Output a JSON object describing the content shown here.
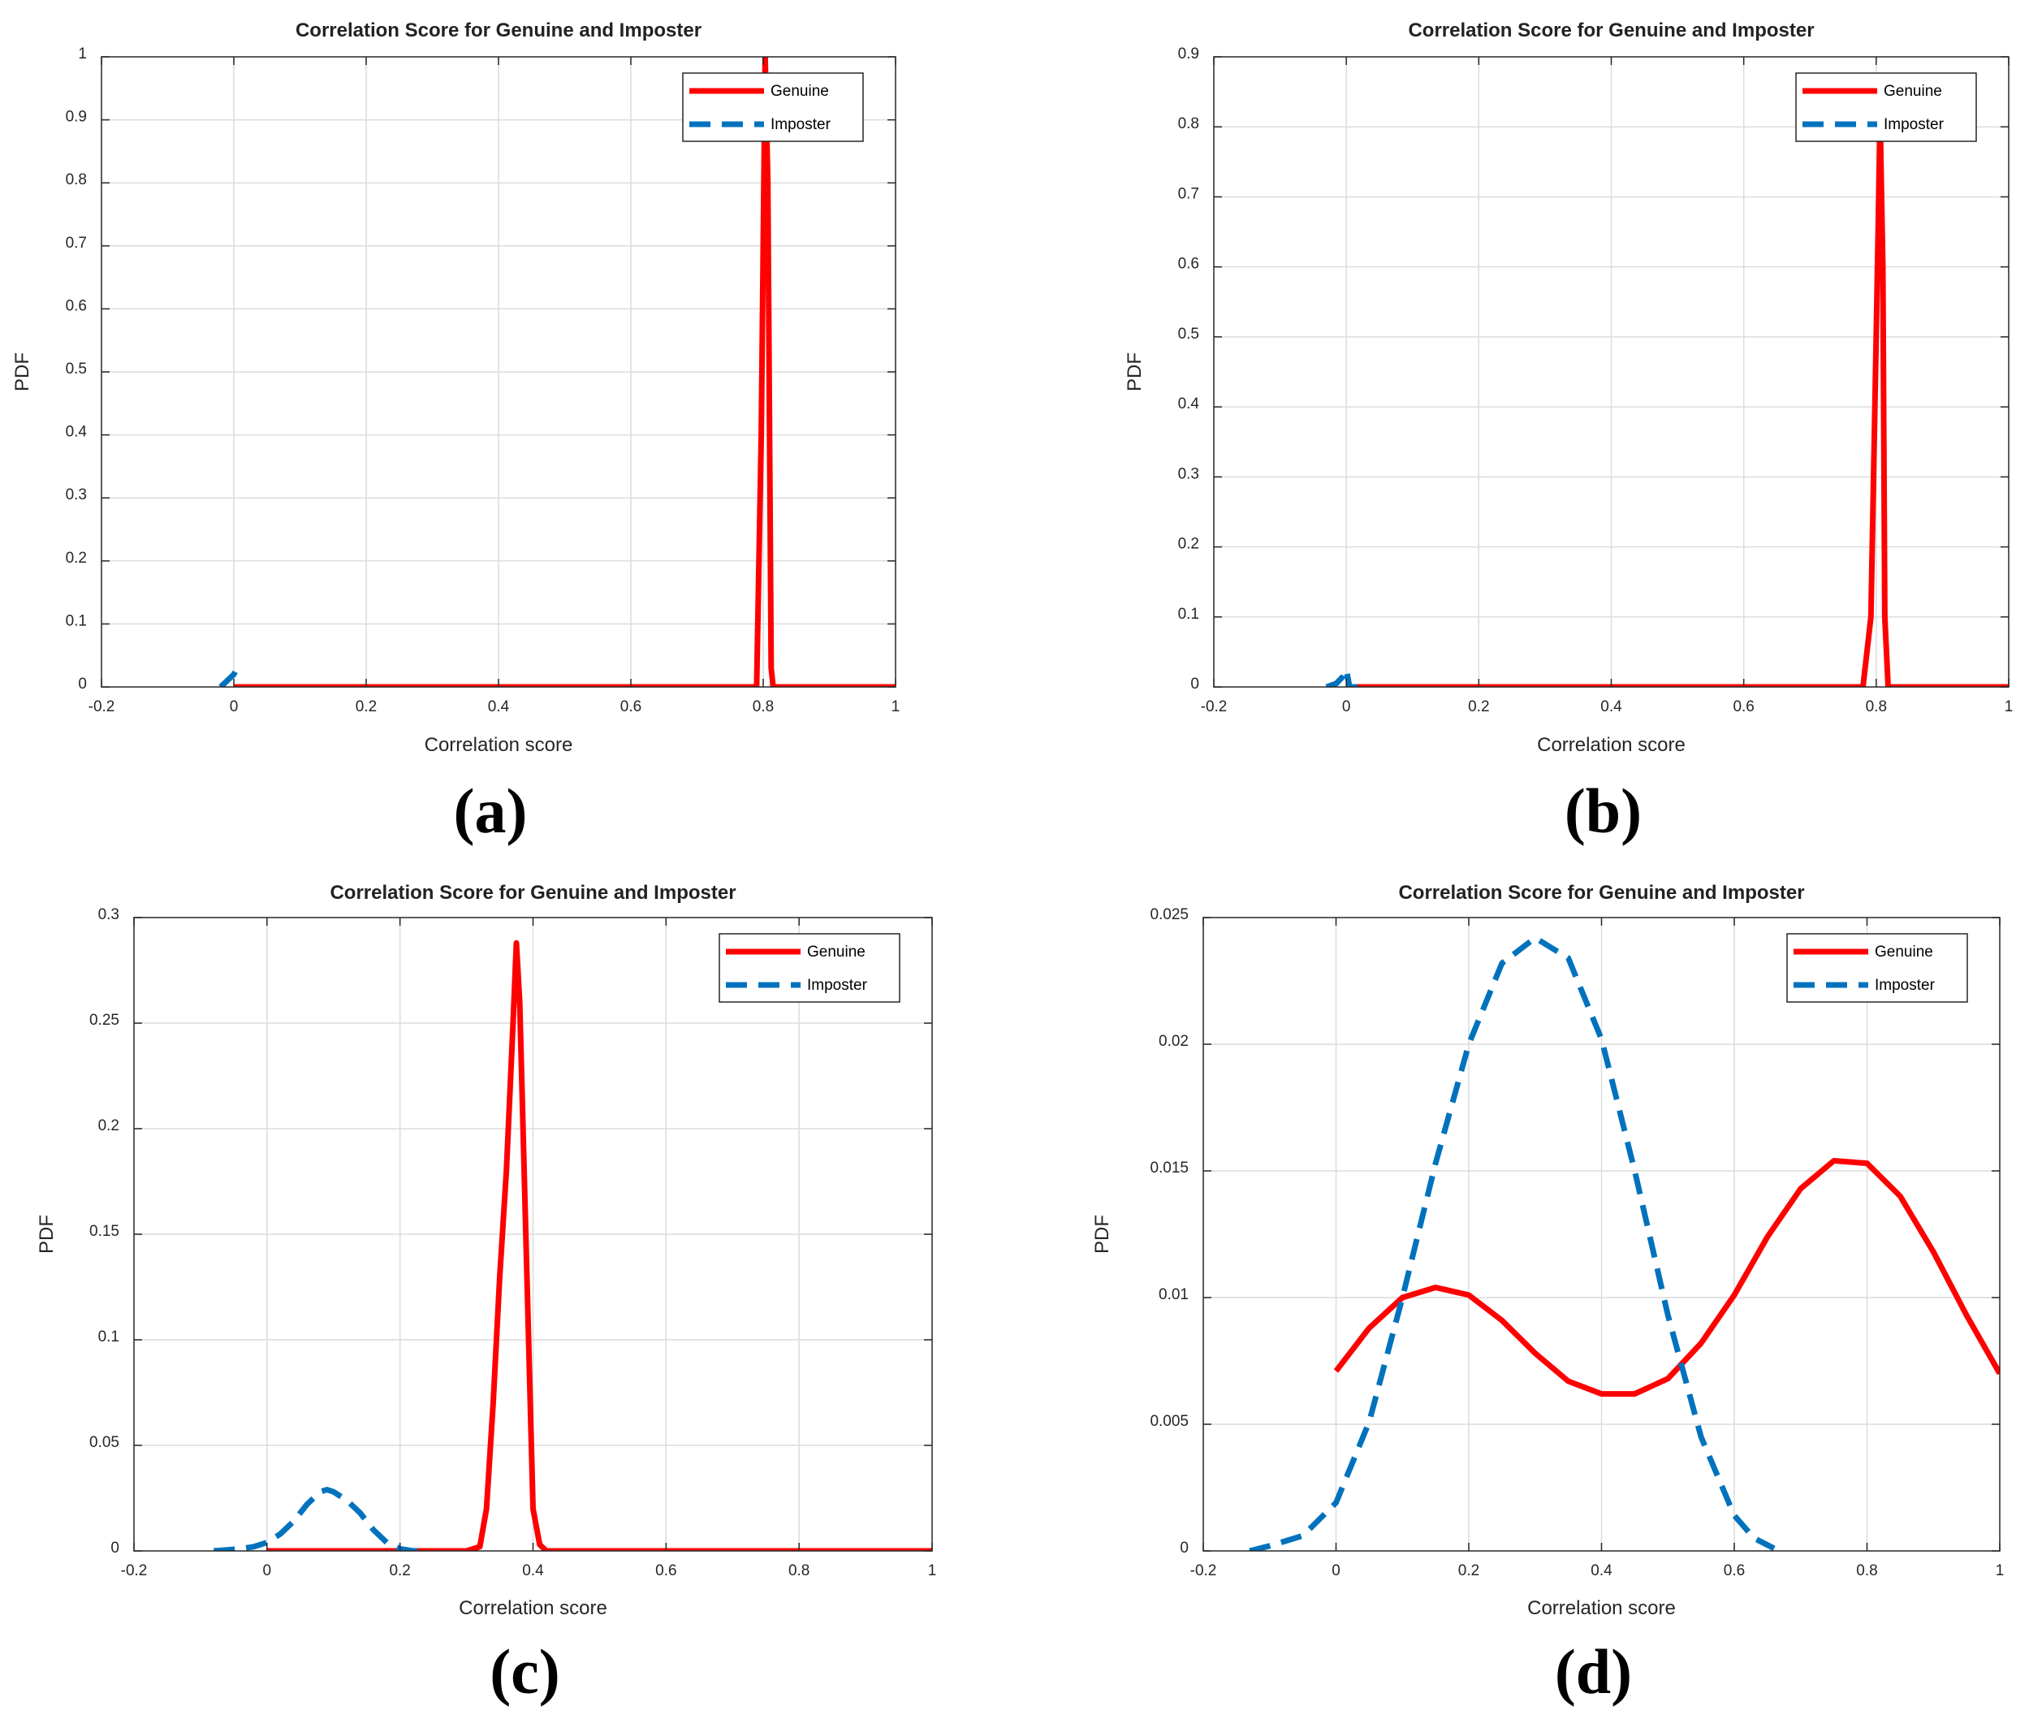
{
  "colors": {
    "genuine": "#ff0000",
    "imposter": "#0072bd"
  },
  "chart_data": [
    {
      "type": "line",
      "panel_label": "(a)",
      "title": "Correlation Score for Genuine and Imposter",
      "xlabel": "Correlation score",
      "ylabel": "PDF",
      "xlim": [
        -0.2,
        1
      ],
      "ylim": [
        0,
        1
      ],
      "xticks": [
        -0.2,
        0,
        0.2,
        0.4,
        0.6,
        0.8,
        1
      ],
      "xtick_labels": [
        "-0.2",
        "0",
        "0.2",
        "0.4",
        "0.6",
        "0.8",
        "1"
      ],
      "yticks": [
        0,
        0.1,
        0.2,
        0.3,
        0.4,
        0.5,
        0.6,
        0.7,
        0.8,
        0.9,
        1
      ],
      "ytick_labels": [
        "0",
        "0.1",
        "0.2",
        "0.3",
        "0.4",
        "0.5",
        "0.6",
        "0.7",
        "0.8",
        "0.9",
        "1"
      ],
      "grid": true,
      "legend_position": "top-right",
      "series": [
        {
          "name": "Genuine",
          "style": "solid",
          "x": [
            0.0,
            0.2,
            0.4,
            0.6,
            0.79,
            0.797,
            0.803,
            0.807,
            0.81,
            0.812,
            0.815,
            1.0
          ],
          "y": [
            0,
            0,
            0,
            0,
            0,
            0.4,
            1.0,
            0.8,
            0.35,
            0.03,
            0,
            0
          ]
        },
        {
          "name": "Imposter",
          "style": "dashed",
          "x": [
            -0.02,
            -0.01,
            0.0,
            0.005
          ],
          "y": [
            0,
            0.01,
            0.02,
            0.03
          ]
        }
      ]
    },
    {
      "type": "line",
      "panel_label": "(b)",
      "title": "Correlation Score for Genuine and Imposter",
      "xlabel": "Correlation score",
      "ylabel": "PDF",
      "xlim": [
        -0.2,
        1
      ],
      "ylim": [
        0,
        0.9
      ],
      "xticks": [
        -0.2,
        0,
        0.2,
        0.4,
        0.6,
        0.8,
        1
      ],
      "xtick_labels": [
        "-0.2",
        "0",
        "0.2",
        "0.4",
        "0.6",
        "0.8",
        "1"
      ],
      "yticks": [
        0,
        0.1,
        0.2,
        0.3,
        0.4,
        0.5,
        0.6,
        0.7,
        0.8,
        0.9
      ],
      "ytick_labels": [
        "0",
        "0.1",
        "0.2",
        "0.3",
        "0.4",
        "0.5",
        "0.6",
        "0.7",
        "0.8",
        "0.9"
      ],
      "grid": true,
      "legend_position": "top-right",
      "series": [
        {
          "name": "Genuine",
          "style": "solid",
          "x": [
            0.0,
            0.2,
            0.4,
            0.6,
            0.78,
            0.792,
            0.8,
            0.806,
            0.81,
            0.813,
            0.818,
            1.0
          ],
          "y": [
            0,
            0,
            0,
            0,
            0,
            0.1,
            0.5,
            0.81,
            0.6,
            0.1,
            0,
            0
          ]
        },
        {
          "name": "Imposter",
          "style": "dashed",
          "x": [
            -0.03,
            -0.015,
            -0.005,
            0.0,
            0.005,
            0.03
          ],
          "y": [
            0,
            0.005,
            0.015,
            0.025,
            0,
            0
          ]
        }
      ]
    },
    {
      "type": "line",
      "panel_label": "(c)",
      "title": "Correlation Score for Genuine and Imposter",
      "xlabel": "Correlation score",
      "ylabel": "PDF",
      "xlim": [
        -0.2,
        1
      ],
      "ylim": [
        0,
        0.3
      ],
      "xticks": [
        -0.2,
        0,
        0.2,
        0.4,
        0.6,
        0.8,
        1
      ],
      "xtick_labels": [
        "-0.2",
        "0",
        "0.2",
        "0.4",
        "0.6",
        "0.8",
        "1"
      ],
      "yticks": [
        0,
        0.05,
        0.1,
        0.15,
        0.2,
        0.25,
        0.3
      ],
      "ytick_labels": [
        "0",
        "0.05",
        "0.1",
        "0.15",
        "0.2",
        "0.25",
        "0.3"
      ],
      "grid": true,
      "legend_position": "top-right",
      "series": [
        {
          "name": "Genuine",
          "style": "solid",
          "x": [
            0.0,
            0.1,
            0.2,
            0.3,
            0.32,
            0.33,
            0.34,
            0.35,
            0.36,
            0.37,
            0.375,
            0.38,
            0.39,
            0.4,
            0.41,
            0.42,
            0.6,
            0.8,
            1.0
          ],
          "y": [
            0,
            0,
            0,
            0,
            0.002,
            0.02,
            0.07,
            0.13,
            0.18,
            0.25,
            0.288,
            0.26,
            0.14,
            0.02,
            0.003,
            0,
            0,
            0,
            0
          ]
        },
        {
          "name": "Imposter",
          "style": "dashed",
          "x": [
            -0.08,
            -0.06,
            -0.04,
            -0.02,
            0.0,
            0.02,
            0.04,
            0.06,
            0.08,
            0.09,
            0.1,
            0.12,
            0.14,
            0.16,
            0.18,
            0.2,
            0.22,
            0.23
          ],
          "y": [
            0,
            0.0005,
            0.001,
            0.002,
            0.004,
            0.008,
            0.014,
            0.022,
            0.028,
            0.029,
            0.028,
            0.024,
            0.018,
            0.01,
            0.004,
            0.001,
            0,
            0
          ]
        }
      ]
    },
    {
      "type": "line",
      "panel_label": "(d)",
      "title": "Correlation Score for Genuine and Imposter",
      "xlabel": "Correlation score",
      "ylabel": "PDF",
      "xlim": [
        -0.2,
        1
      ],
      "ylim": [
        0,
        0.025
      ],
      "xticks": [
        -0.2,
        0,
        0.2,
        0.4,
        0.6,
        0.8,
        1
      ],
      "xtick_labels": [
        "-0.2",
        "0",
        "0.2",
        "0.4",
        "0.6",
        "0.8",
        "1"
      ],
      "yticks": [
        0,
        0.005,
        0.01,
        0.015,
        0.02,
        0.025
      ],
      "ytick_labels": [
        "0",
        "0.005",
        "0.01",
        "0.015",
        "0.02",
        "0.025"
      ],
      "grid": true,
      "legend_position": "top-right",
      "series": [
        {
          "name": "Genuine",
          "style": "solid",
          "x": [
            0.0,
            0.05,
            0.1,
            0.15,
            0.2,
            0.25,
            0.3,
            0.35,
            0.4,
            0.45,
            0.5,
            0.55,
            0.6,
            0.65,
            0.7,
            0.75,
            0.8,
            0.85,
            0.9,
            0.95,
            1.0
          ],
          "y": [
            0.0071,
            0.0088,
            0.01,
            0.0104,
            0.0101,
            0.0091,
            0.0078,
            0.0067,
            0.0062,
            0.0062,
            0.0068,
            0.0082,
            0.0101,
            0.0124,
            0.0143,
            0.0154,
            0.0153,
            0.014,
            0.0118,
            0.0093,
            0.007
          ]
        },
        {
          "name": "Imposter",
          "style": "dashed",
          "x": [
            -0.13,
            -0.1,
            -0.05,
            0.0,
            0.05,
            0.1,
            0.15,
            0.2,
            0.25,
            0.3,
            0.35,
            0.4,
            0.45,
            0.5,
            0.55,
            0.6,
            0.63,
            0.66
          ],
          "y": [
            0,
            0.0002,
            0.0006,
            0.0019,
            0.0051,
            0.01,
            0.0153,
            0.02,
            0.0232,
            0.0242,
            0.0234,
            0.0202,
            0.015,
            0.0093,
            0.0045,
            0.0014,
            0.0005,
            0.0001
          ]
        }
      ]
    }
  ]
}
